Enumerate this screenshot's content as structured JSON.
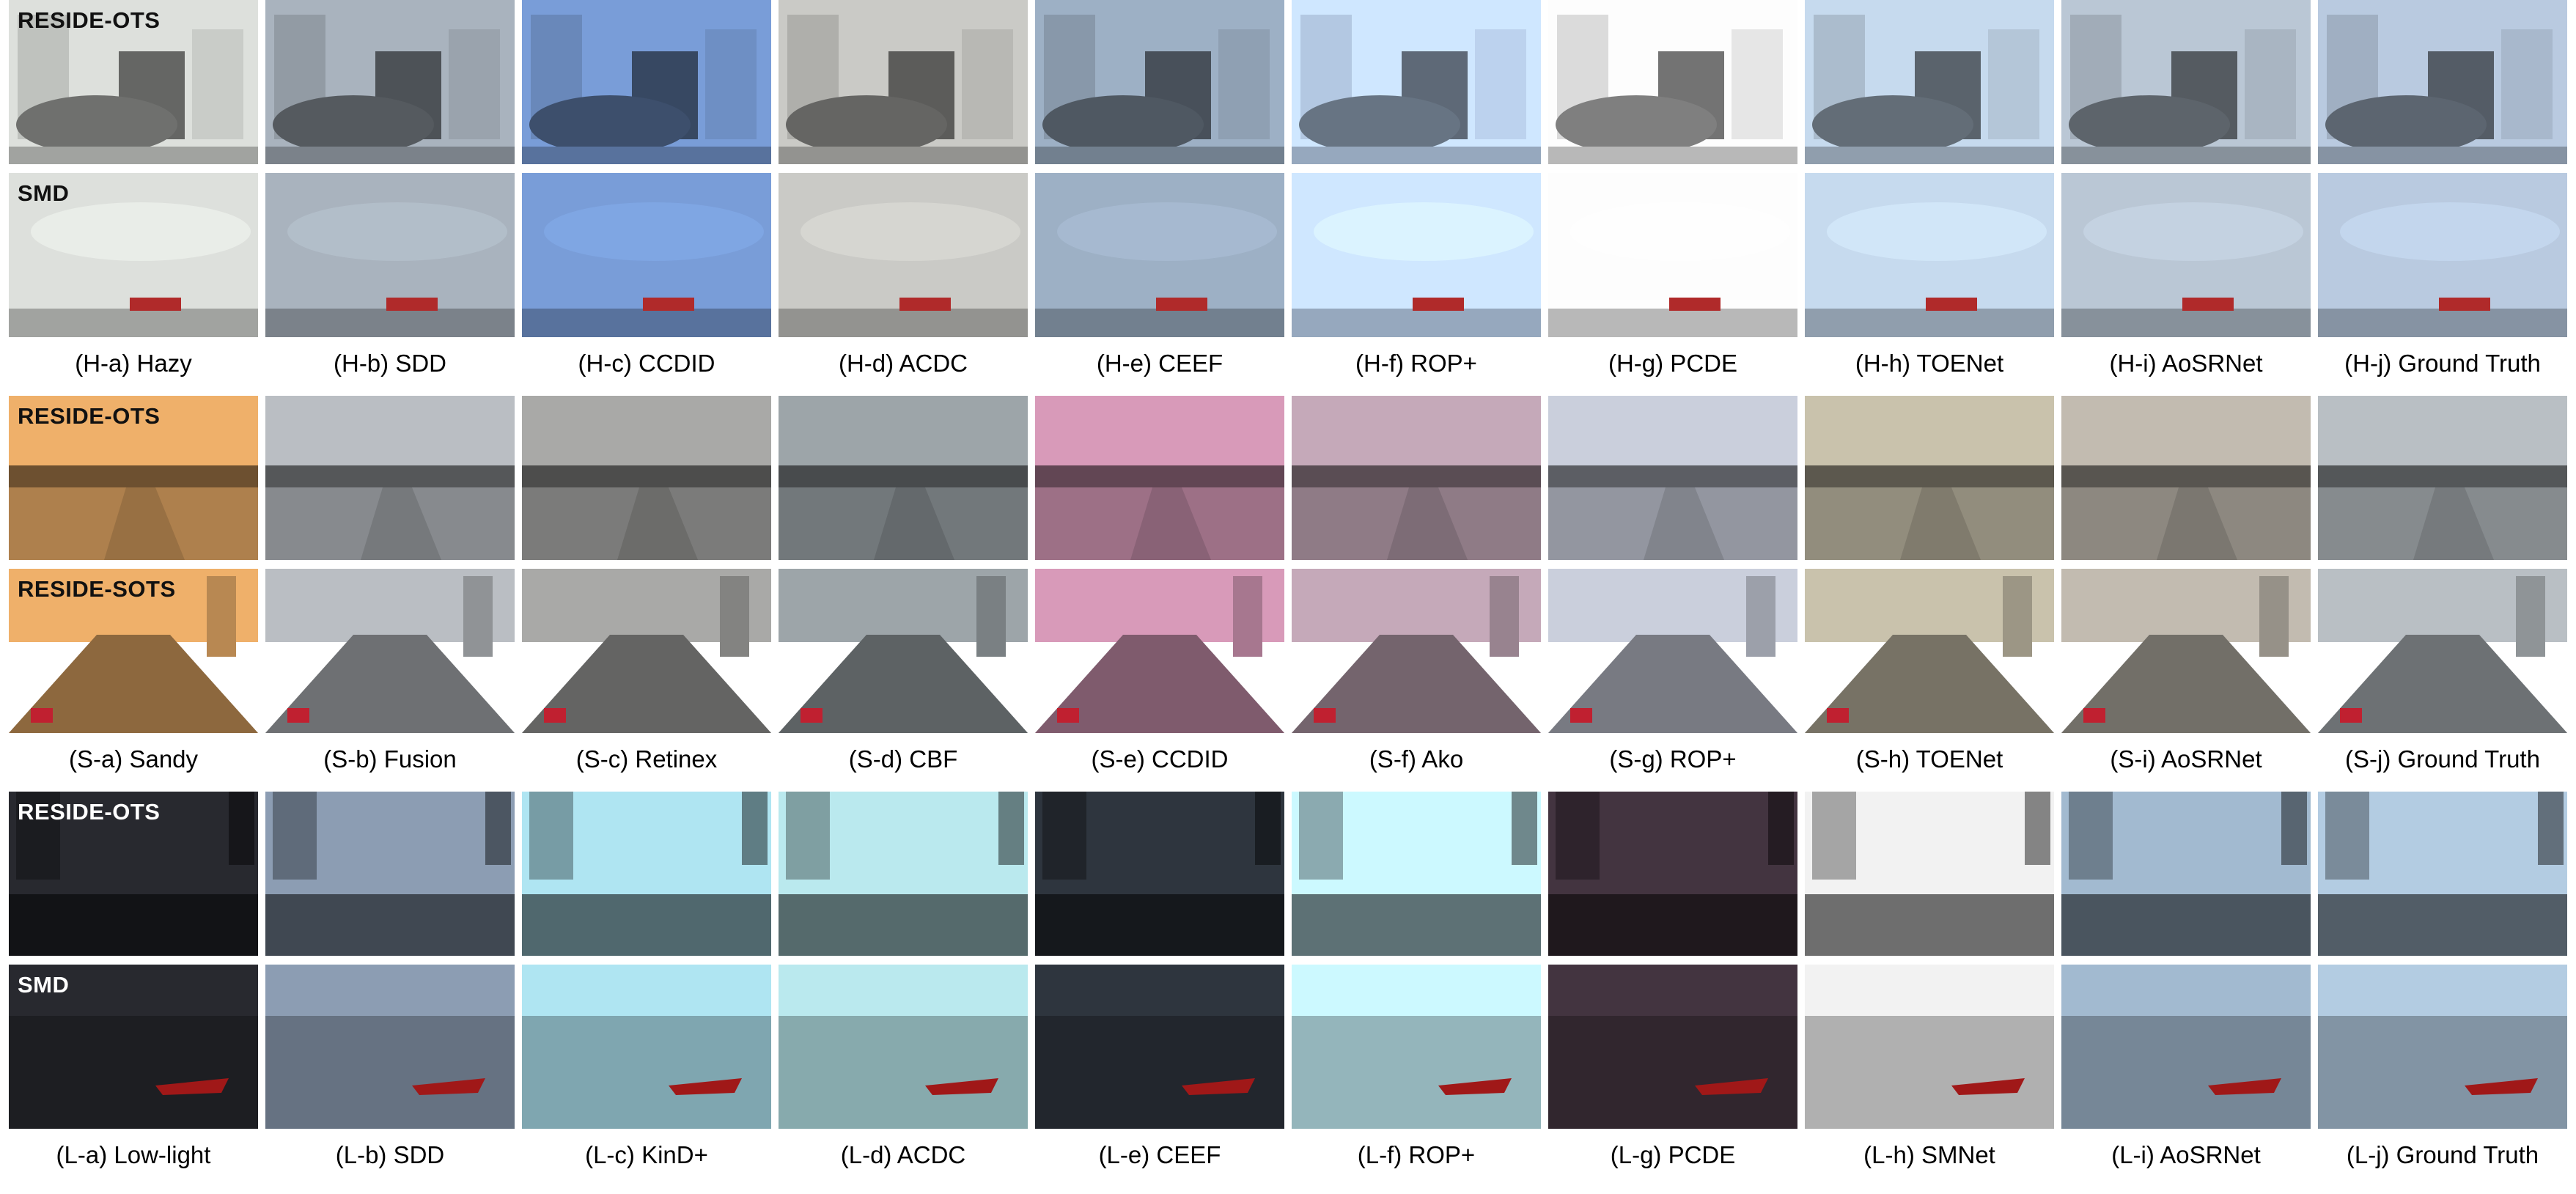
{
  "groups": [
    {
      "id": "H",
      "rows": [
        {
          "dataset": "RESIDE-OTS",
          "scene": "buildings"
        },
        {
          "dataset": "SMD",
          "scene": "sea"
        }
      ],
      "captions": [
        "(H-a) Hazy",
        "(H-b) SDD",
        "(H-c) CCDID",
        "(H-d) ACDC",
        "(H-e) CEEF",
        "(H-f) ROP+",
        "(H-g) PCDE",
        "(H-h) TOENet",
        "(H-i) AoSRNet",
        "(H-j) Ground Truth"
      ]
    },
    {
      "id": "S",
      "rows": [
        {
          "dataset": "RESIDE-OTS",
          "scene": "parking"
        },
        {
          "dataset": "RESIDE-SOTS",
          "scene": "traffic"
        }
      ],
      "captions": [
        "(S-a) Sandy",
        "(S-b) Fusion",
        "(S-c) Retinex",
        "(S-d) CBF",
        "(S-e) CCDID",
        "(S-f) Ako",
        "(S-g) ROP+",
        "(S-h) TOENet",
        "(S-i) AoSRNet",
        "(S-j) Ground Truth"
      ]
    },
    {
      "id": "L",
      "rows": [
        {
          "dataset": "RESIDE-OTS",
          "scene": "road"
        },
        {
          "dataset": "SMD",
          "scene": "boat"
        }
      ],
      "captions": [
        "(L-a) Low-light",
        "(L-b) SDD",
        "(L-c) KinD+",
        "(L-d) ACDC",
        "(L-e) CEEF",
        "(L-f) ROP+",
        "(L-g)  PCDE",
        "(L-h) SMNet",
        "(L-i) AoSRNet",
        "(L-j) Ground Truth"
      ]
    }
  ],
  "tile_tints": {
    "H": [
      "#c9ccc8",
      "#9aa3ad",
      "#6e8fc4",
      "#b8b8b4",
      "#8fa0b3",
      "#bcd2ee",
      "#e6e6e6",
      "#b4c6d8",
      "#a9b5c2",
      "#a8b8cc"
    ],
    "S": [
      "#d9a060",
      "#a9adb1",
      "#9a9a98",
      "#8f969a",
      "#c48ca8",
      "#b39aa8",
      "#b8bcc8",
      "#b7b09c",
      "#b0aaa0",
      "#a8aeb2"
    ],
    "L": [
      "#24252b",
      "#7f8fa3",
      "#9fd0dc",
      "#a9d4d8",
      "#2a3038",
      "#b9e2ea",
      "#3d2f3a",
      "#dcdcdc",
      "#93a9bd",
      "#a3b9cd"
    ]
  },
  "label_colors": {
    "dark": "#111111",
    "light": "#ffffff"
  }
}
